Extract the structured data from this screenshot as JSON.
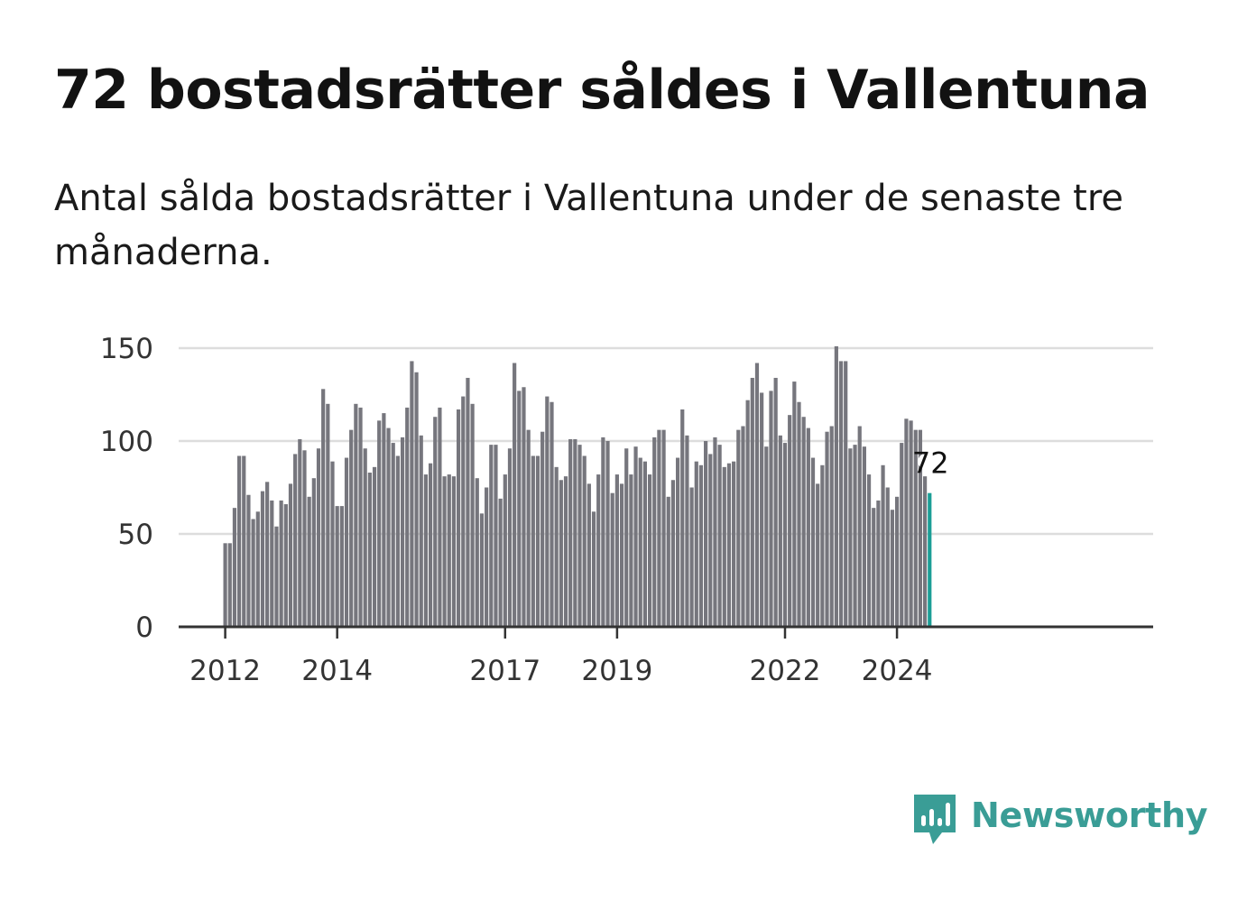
{
  "title": "72 bostadsrätter såldes i Vallentuna",
  "subtitle": "Antal sålda bostadsrätter i Vallentuna under de senaste tre månaderna.",
  "brand": {
    "name": "Newsworthy",
    "color": "#3a9d96",
    "icon": "newsworthy-chart-bubble-icon"
  },
  "chart_data": {
    "type": "bar",
    "title": "72 bostadsrätter såldes i Vallentuna",
    "xlabel": "",
    "ylabel": "",
    "ylim": [
      0,
      150
    ],
    "yticks": [
      0,
      50,
      100,
      150
    ],
    "grid": true,
    "bar_color": "#76767d",
    "highlight_color": "#1b9e96",
    "grid_color": "#dddddd",
    "axis_color": "#333333",
    "period_start": "2012-01",
    "xtick_labels": [
      {
        "label": "2012",
        "index": 0
      },
      {
        "label": "2014",
        "index": 24
      },
      {
        "label": "2017",
        "index": 60
      },
      {
        "label": "2019",
        "index": 84
      },
      {
        "label": "2022",
        "index": 120
      },
      {
        "label": "2024",
        "index": 144
      }
    ],
    "values": [
      45,
      45,
      64,
      92,
      92,
      71,
      58,
      62,
      73,
      78,
      68,
      54,
      68,
      66,
      77,
      93,
      101,
      95,
      70,
      80,
      96,
      128,
      120,
      89,
      65,
      65,
      91,
      106,
      120,
      118,
      96,
      83,
      86,
      111,
      115,
      107,
      99,
      92,
      102,
      118,
      143,
      137,
      103,
      82,
      88,
      113,
      118,
      81,
      82,
      81,
      117,
      124,
      134,
      120,
      80,
      61,
      75,
      98,
      98,
      69,
      82,
      96,
      142,
      127,
      129,
      106,
      92,
      92,
      105,
      124,
      121,
      86,
      79,
      81,
      101,
      101,
      98,
      92,
      77,
      62,
      82,
      102,
      100,
      72,
      82,
      77,
      96,
      82,
      97,
      91,
      89,
      82,
      102,
      106,
      106,
      70,
      79,
      91,
      117,
      103,
      75,
      89,
      87,
      100,
      93,
      102,
      98,
      86,
      88,
      89,
      106,
      108,
      122,
      134,
      142,
      126,
      97,
      127,
      134,
      103,
      99,
      114,
      132,
      121,
      113,
      107,
      91,
      77,
      87,
      105,
      108,
      151,
      143,
      143,
      96,
      98,
      108,
      97,
      82,
      64,
      68,
      87,
      75,
      63,
      70,
      99,
      112,
      111,
      106,
      106,
      81,
      72
    ],
    "highlight_index": 151,
    "highlight_label": "72"
  }
}
